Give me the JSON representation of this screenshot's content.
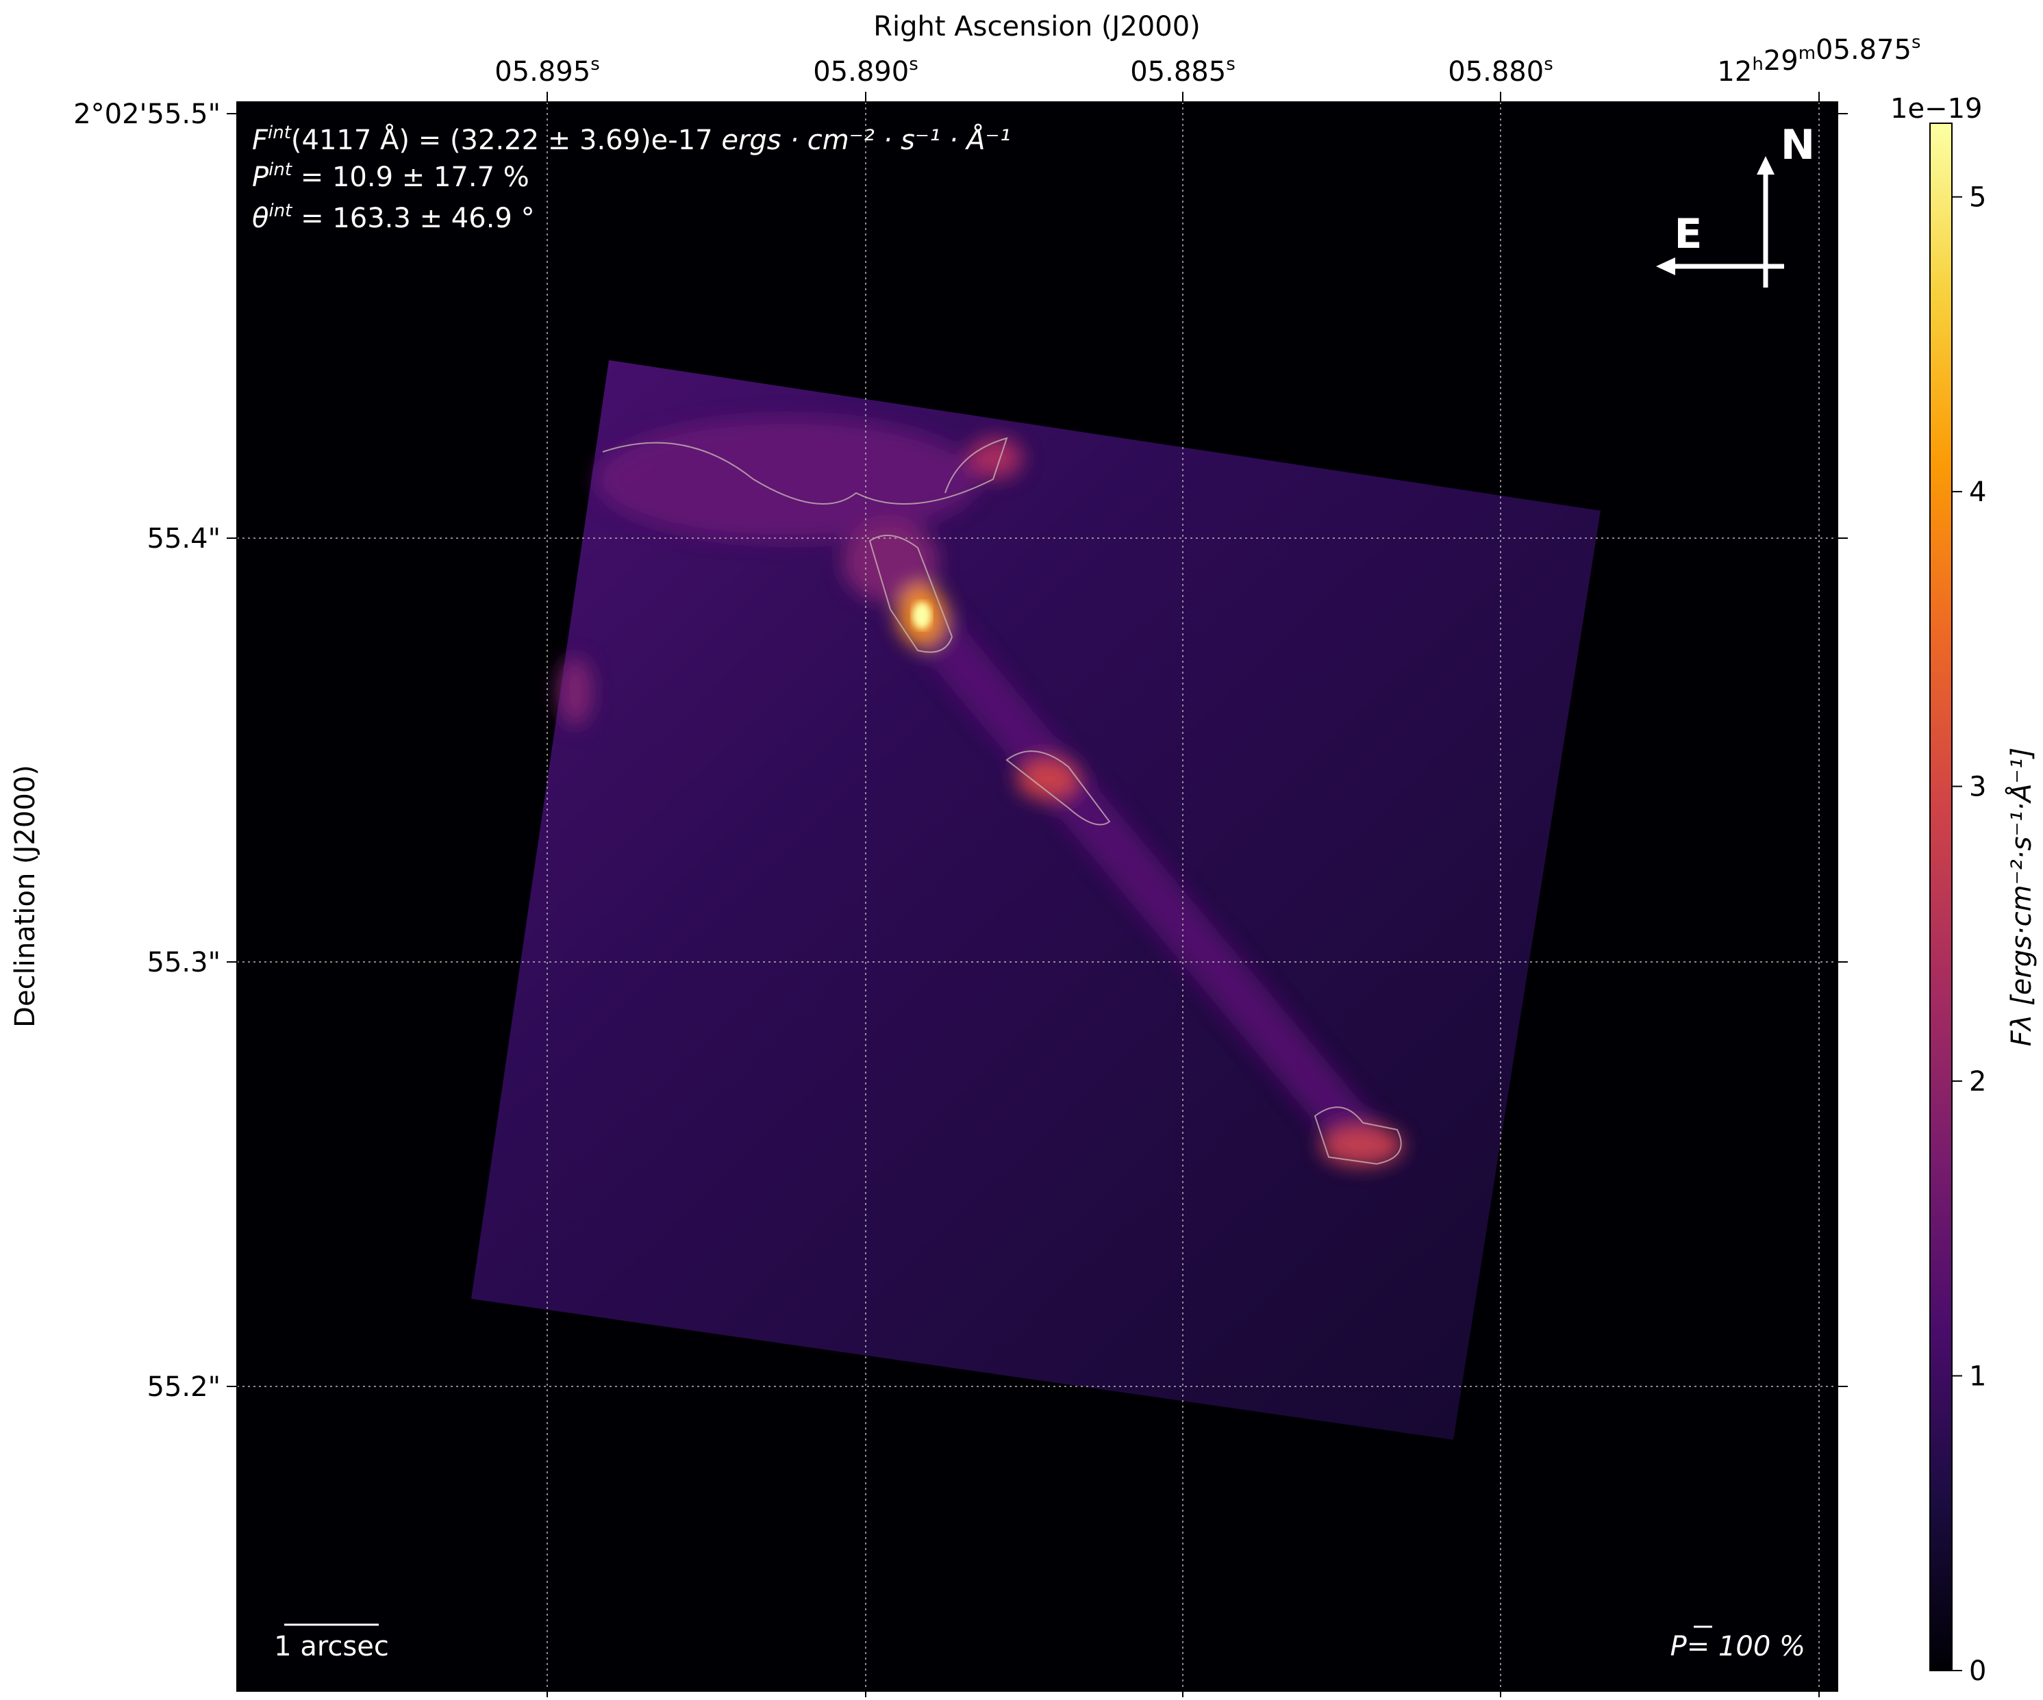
{
  "chart_data": {
    "type": "heatmap",
    "colormap": "inferno",
    "xlabel": "Right Ascension (J2000)",
    "ylabel": "Declination (J2000)",
    "x_ticks": [
      {
        "base": "05.895",
        "sup": "s"
      },
      {
        "base": "05.890",
        "sup": "s"
      },
      {
        "base": "05.885",
        "sup": "s"
      },
      {
        "base": "05.880",
        "sup": "s"
      },
      {
        "base": "12",
        "sup": "h",
        "base2": "29",
        "sup2": "m",
        "base3": "05.875",
        "sup3": "s"
      }
    ],
    "y_ticks": [
      "2°02'55.5\"",
      "55.4\"",
      "55.3\"",
      "55.2\""
    ],
    "grid": true,
    "colorbar": {
      "label": "F_λ [ergs · cm^−2 · s^−1 · Å^−1]",
      "label_text": "Fλ [ergs·cm⁻²·s⁻¹·Å⁻¹]",
      "offset_text": "1e−19",
      "ticks": [
        0,
        1,
        2,
        3,
        4,
        5
      ],
      "range": [
        0,
        5.25
      ]
    },
    "annotations": {
      "flux": "(4117 Å) = (32.22 ± 3.69)e-17 ",
      "flux_units": "ergs · cm⁻² · s⁻¹ · Å⁻¹",
      "pol": " = 10.9 ± 17.7 %",
      "angle": " = 163.3 ± 46.9 °",
      "scale_bar": "1 arcsec",
      "pol_scale": "P= 100 %",
      "north": "N",
      "east": "E"
    },
    "colors": {
      "background": "#000004",
      "contour": "#c8b4b4",
      "vectors": "#ffffff"
    }
  }
}
